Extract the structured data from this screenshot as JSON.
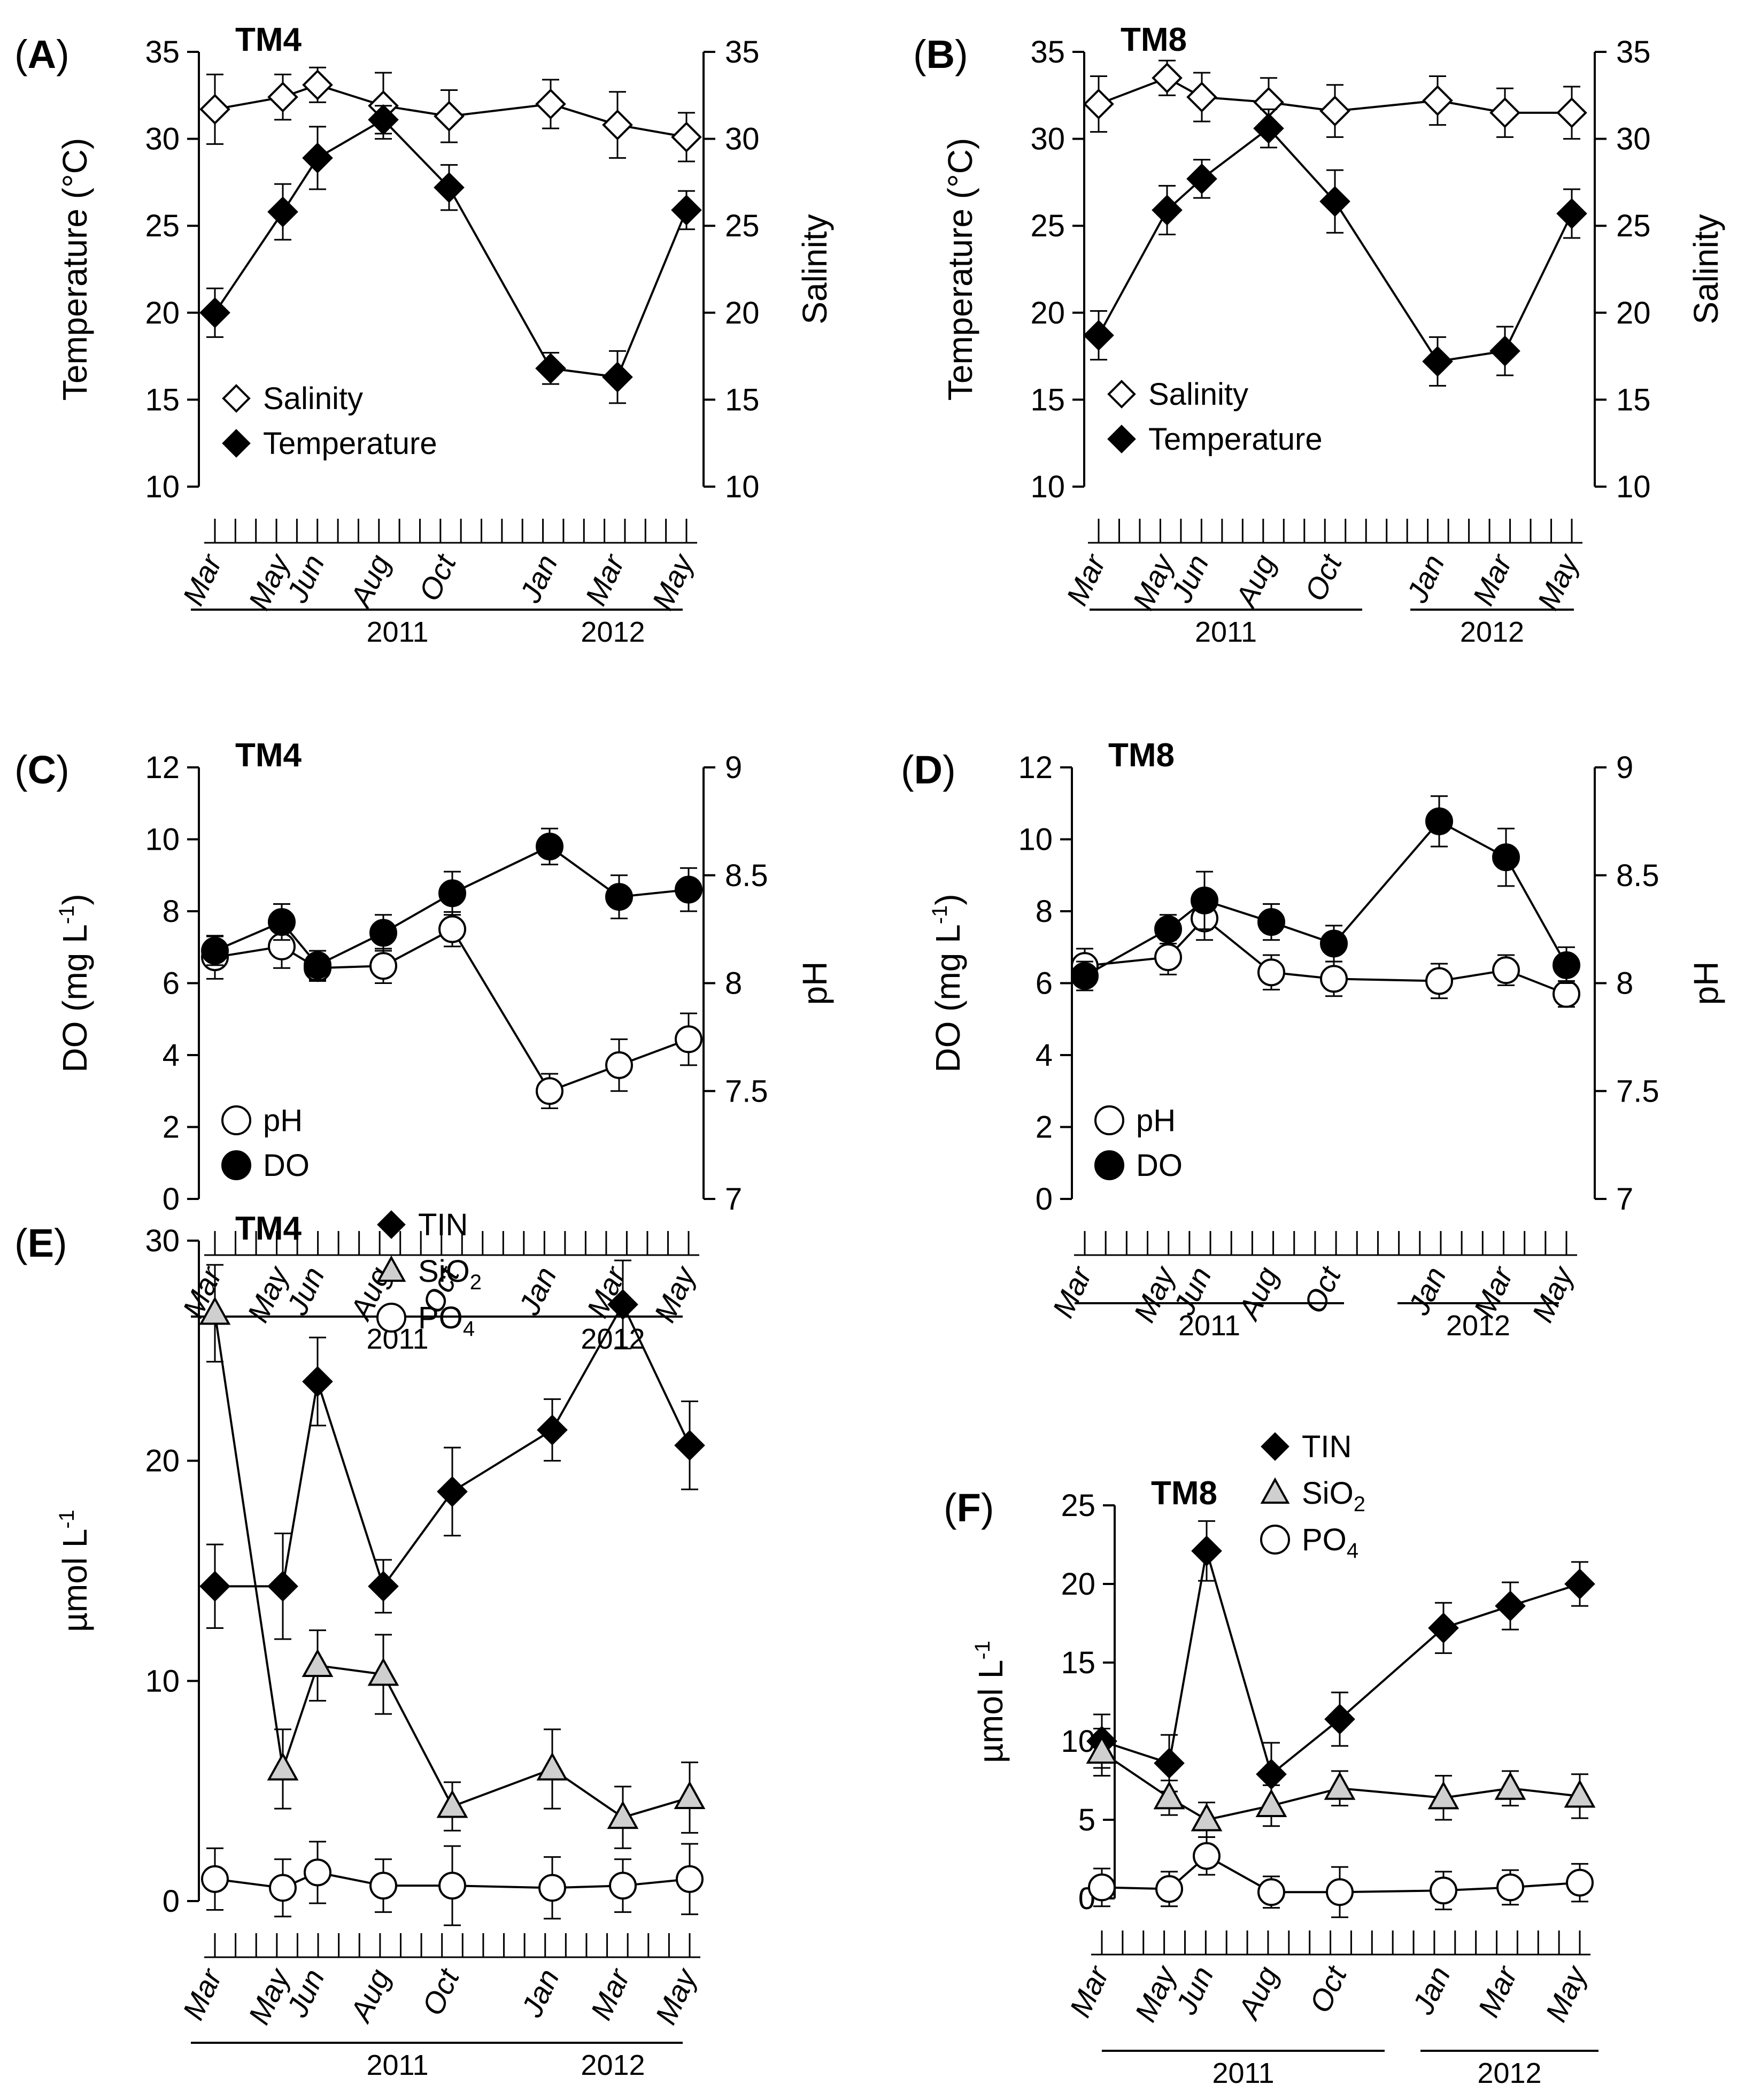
{
  "chart_data": [
    {
      "panel": "A",
      "station": "TM4",
      "type": "line",
      "months": [
        "Mar",
        "May",
        "Jun",
        "Aug",
        "Oct",
        "Jan",
        "Mar",
        "May"
      ],
      "years": [
        "2011",
        "2012"
      ],
      "ylabel_left": "Temperature (°C)",
      "ylabel_right": "Salinity",
      "ylim_left": [
        10,
        35
      ],
      "ylim_right": [
        10,
        35
      ],
      "yticks_left": [
        "10",
        "15",
        "20",
        "25",
        "30",
        "35"
      ],
      "yticks_right": [
        "10",
        "15",
        "20",
        "25",
        "30",
        "35"
      ],
      "series": [
        {
          "name": "Salinity",
          "axis": "right",
          "marker": "diamond-open",
          "values": [
            31.7,
            32.4,
            33.1,
            31.9,
            31.3,
            32.0,
            30.8,
            30.1
          ],
          "err": [
            2.0,
            1.3,
            1.0,
            1.9,
            1.5,
            1.4,
            1.9,
            1.4
          ]
        },
        {
          "name": "Temperature",
          "axis": "left",
          "marker": "diamond-filled",
          "values": [
            20.0,
            25.8,
            28.9,
            31.1,
            27.2,
            16.8,
            16.3,
            25.9
          ],
          "err": [
            1.4,
            1.6,
            1.8,
            0.8,
            1.3,
            0.9,
            1.5,
            1.1
          ]
        }
      ]
    },
    {
      "panel": "B",
      "station": "TM8",
      "type": "line",
      "months": [
        "Mar",
        "May",
        "Jun",
        "Aug",
        "Oct",
        "Jan",
        "Mar",
        "May"
      ],
      "years": [
        "2011",
        "2012"
      ],
      "ylabel_left": "Temperature (°C)",
      "ylabel_right": "Salinity",
      "ylim_left": [
        10,
        35
      ],
      "ylim_right": [
        10,
        35
      ],
      "yticks_left": [
        "10",
        "15",
        "20",
        "25",
        "30",
        "35"
      ],
      "yticks_right": [
        "10",
        "15",
        "20",
        "25",
        "30",
        "35"
      ],
      "series": [
        {
          "name": "Salinity",
          "axis": "right",
          "marker": "diamond-open",
          "values": [
            32.0,
            33.5,
            32.4,
            32.1,
            31.6,
            32.2,
            31.5,
            31.5
          ],
          "err": [
            1.6,
            1.0,
            1.4,
            1.4,
            1.5,
            1.4,
            1.4,
            1.5
          ]
        },
        {
          "name": "Temperature",
          "axis": "left",
          "marker": "diamond-filled",
          "values": [
            18.7,
            25.9,
            27.7,
            30.6,
            26.4,
            17.2,
            17.8,
            25.7
          ],
          "err": [
            1.4,
            1.4,
            1.1,
            1.1,
            1.8,
            1.4,
            1.4,
            1.4
          ]
        }
      ]
    },
    {
      "panel": "C",
      "station": "TM4",
      "type": "line",
      "months": [
        "Mar",
        "May",
        "Jun",
        "Aug",
        "Oct",
        "Jan",
        "Mar",
        "May"
      ],
      "years": [
        "2011",
        "2012"
      ],
      "ylabel_left": "DO (mg L-1)",
      "ylabel_right": "pH",
      "ylim_left": [
        0,
        12
      ],
      "ylim_right": [
        7,
        9
      ],
      "yticks_left": [
        "0",
        "2",
        "4",
        "6",
        "8",
        "10",
        "12"
      ],
      "yticks_right": [
        "7",
        "7.5",
        "8",
        "8.5",
        "9"
      ],
      "series": [
        {
          "name": "pH",
          "axis": "right",
          "marker": "circle-open",
          "values": [
            8.12,
            8.17,
            8.07,
            8.08,
            8.25,
            7.5,
            7.62,
            7.74
          ],
          "err": [
            0.1,
            0.1,
            0.06,
            0.08,
            0.08,
            0.08,
            0.12,
            0.12
          ]
        },
        {
          "name": "DO",
          "axis": "left",
          "marker": "circle-filled",
          "values": [
            6.9,
            7.7,
            6.5,
            7.4,
            8.5,
            9.8,
            8.4,
            8.6
          ],
          "err": [
            0.4,
            0.5,
            0.4,
            0.5,
            0.6,
            0.5,
            0.6,
            0.6
          ]
        }
      ]
    },
    {
      "panel": "D",
      "station": "TM8",
      "type": "line",
      "months": [
        "Mar",
        "May",
        "Jun",
        "Aug",
        "Oct",
        "Jan",
        "Mar",
        "May"
      ],
      "years": [
        "2011",
        "2012"
      ],
      "ylabel_left": "DO (mg L-1)",
      "ylabel_right": "pH",
      "ylim_left": [
        0,
        12
      ],
      "ylim_right": [
        7,
        9
      ],
      "yticks_left": [
        "0",
        "2",
        "4",
        "6",
        "8",
        "10",
        "12"
      ],
      "yticks_right": [
        "7",
        "7.5",
        "8",
        "8.5",
        "9"
      ],
      "series": [
        {
          "name": "pH",
          "axis": "right",
          "marker": "circle-open",
          "values": [
            8.08,
            8.12,
            8.3,
            8.05,
            8.02,
            8.01,
            8.06,
            7.95
          ],
          "err": [
            0.08,
            0.08,
            0.1,
            0.08,
            0.08,
            0.08,
            0.07,
            0.06
          ]
        },
        {
          "name": "DO",
          "axis": "left",
          "marker": "circle-filled",
          "values": [
            6.2,
            7.5,
            8.3,
            7.7,
            7.1,
            10.5,
            9.5,
            6.5
          ],
          "err": [
            0.4,
            0.4,
            0.8,
            0.5,
            0.5,
            0.7,
            0.8,
            0.5
          ]
        }
      ]
    },
    {
      "panel": "E",
      "station": "TM4",
      "type": "line",
      "months": [
        "Mar",
        "May",
        "Jun",
        "Aug",
        "Oct",
        "Jan",
        "Mar",
        "May"
      ],
      "years": [
        "2011",
        "2012"
      ],
      "ylabel_left": "µmol L-1",
      "ylim_left": [
        0,
        30
      ],
      "yticks_left": [
        "0",
        "10",
        "20",
        "30"
      ],
      "series": [
        {
          "name": "TIN",
          "marker": "diamond-filled",
          "values": [
            14.3,
            14.3,
            23.6,
            14.3,
            18.6,
            21.4,
            27.1,
            20.7
          ],
          "err": [
            1.9,
            2.4,
            2.0,
            1.2,
            2.0,
            1.4,
            2.0,
            2.0
          ]
        },
        {
          "name": "SiO2",
          "marker": "triangle-gray",
          "values": [
            26.7,
            6.0,
            10.7,
            10.3,
            4.3,
            6.0,
            3.8,
            4.7
          ],
          "err": [
            2.2,
            1.8,
            1.6,
            1.8,
            1.1,
            1.8,
            1.4,
            1.6
          ]
        },
        {
          "name": "PO4",
          "marker": "circle-open",
          "values": [
            1.0,
            0.6,
            1.3,
            0.7,
            0.7,
            0.6,
            0.7,
            1.0
          ],
          "err": [
            1.4,
            1.3,
            1.4,
            1.2,
            1.8,
            1.4,
            1.2,
            1.6
          ]
        }
      ]
    },
    {
      "panel": "F",
      "station": "TM8",
      "type": "line",
      "months": [
        "Mar",
        "May",
        "Jun",
        "Aug",
        "Oct",
        "Jan",
        "Mar",
        "May"
      ],
      "years": [
        "2011",
        "2012"
      ],
      "ylabel_left": "µmol L-1",
      "ylim_left": [
        0,
        25
      ],
      "yticks_left": [
        "0",
        "5",
        "10",
        "15",
        "20",
        "25"
      ],
      "series": [
        {
          "name": "TIN",
          "marker": "diamond-filled",
          "values": [
            10.0,
            8.6,
            22.1,
            7.9,
            11.4,
            17.2,
            18.6,
            20.0
          ],
          "err": [
            1.7,
            1.8,
            1.9,
            2.0,
            1.7,
            1.6,
            1.5,
            1.4
          ]
        },
        {
          "name": "SiO2",
          "marker": "triangle-gray",
          "values": [
            9.3,
            6.4,
            5.0,
            5.9,
            7.0,
            6.4,
            7.0,
            6.5
          ],
          "err": [
            1.5,
            1.1,
            1.1,
            1.3,
            1.1,
            1.4,
            1.1,
            1.4
          ]
        },
        {
          "name": "PO4",
          "marker": "circle-open",
          "values": [
            0.7,
            0.6,
            2.7,
            0.4,
            0.4,
            0.5,
            0.7,
            1.0
          ],
          "err": [
            1.2,
            1.1,
            1.2,
            1.0,
            1.6,
            1.2,
            1.1,
            1.2
          ]
        }
      ]
    }
  ]
}
